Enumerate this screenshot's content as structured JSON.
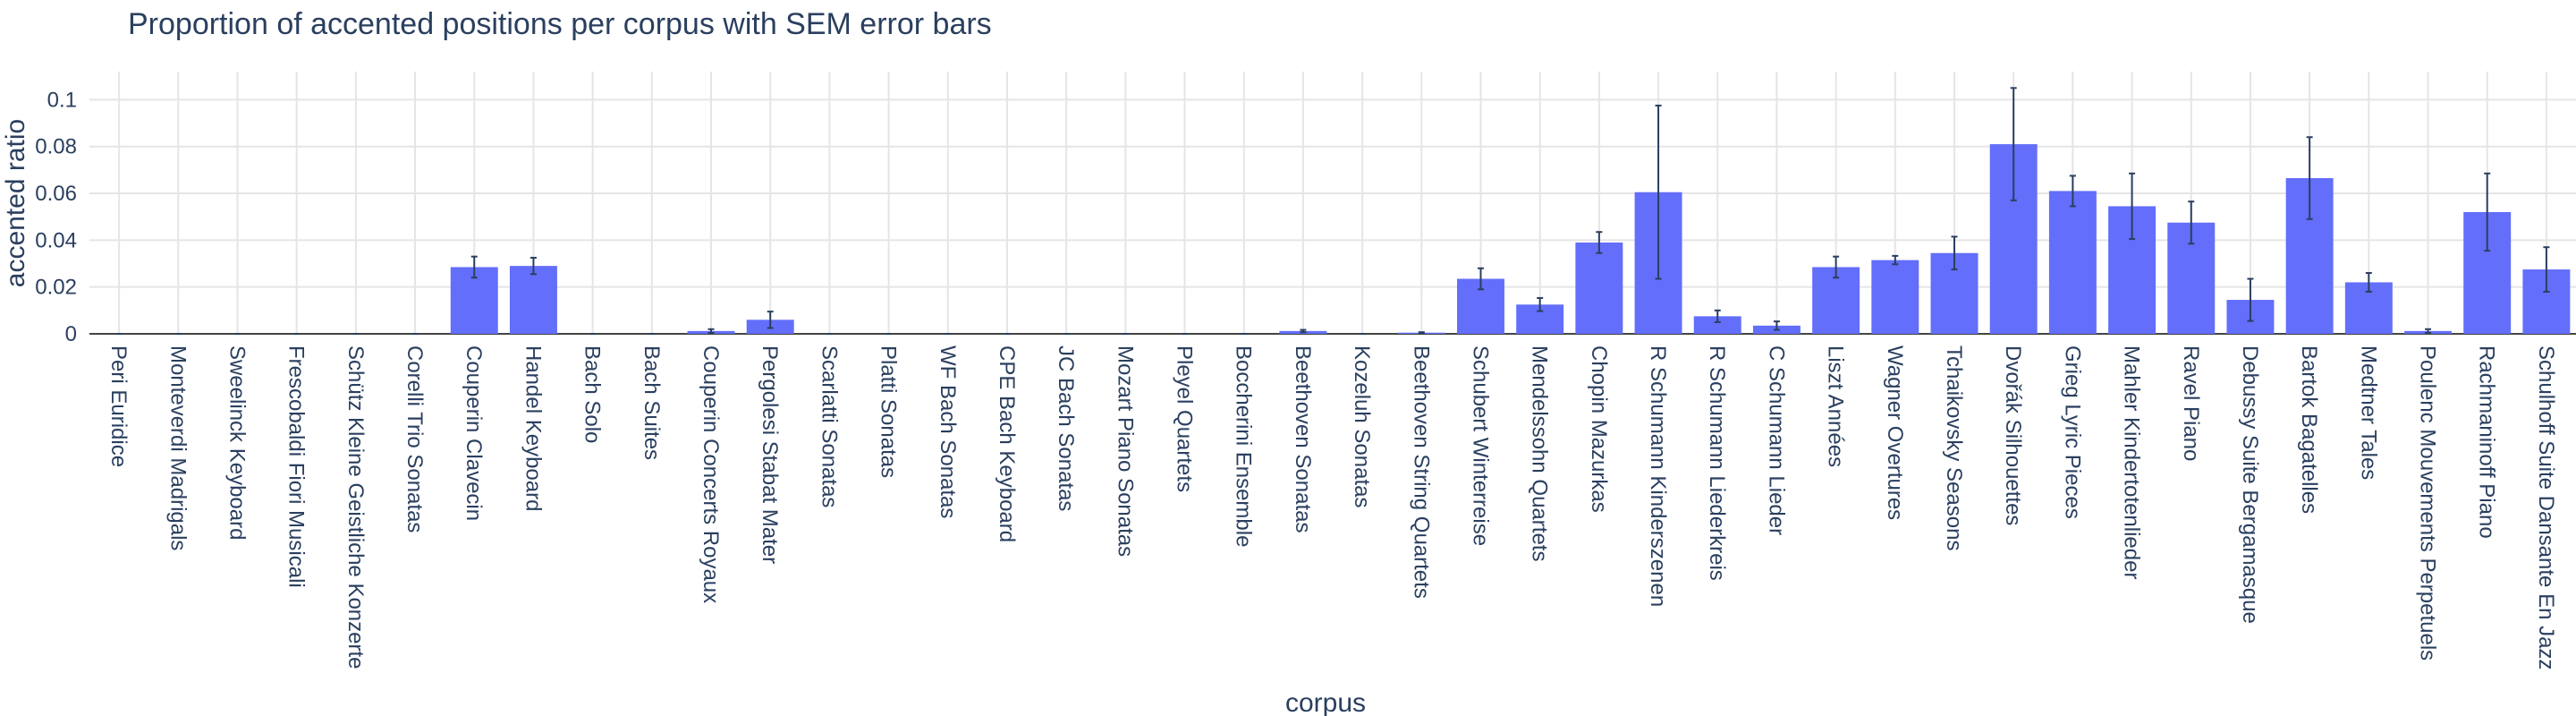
{
  "chart_data": {
    "type": "bar",
    "title": "Proportion of accented positions per corpus with SEM error bars",
    "xlabel": "corpus",
    "ylabel": "accented ratio",
    "ylim": [
      0,
      0.112
    ],
    "yticks": [
      0,
      0.02,
      0.04,
      0.06,
      0.08,
      0.1
    ],
    "ytick_labels": [
      "0",
      "0.02",
      "0.04",
      "0.06",
      "0.08",
      "0.1"
    ],
    "grid": true,
    "bar_color": "#636efa",
    "errorbar_color": "#2a3f5f",
    "categories": [
      "Peri Euridice",
      "Monteverdi Madrigals",
      "Sweelinck Keyboard",
      "Frescobaldi Fiori Musicali",
      "Schütz Kleine Geistliche Konzerte",
      "Corelli Trio Sonatas",
      "Couperin Clavecin",
      "Handel Keyboard",
      "Bach Solo",
      "Bach Suites",
      "Couperin Concerts Royaux",
      "Pergolesi Stabat Mater",
      "Scarlatti Sonatas",
      "Platti Sonatas",
      "WF Bach Sonatas",
      "CPE Bach Keyboard",
      "JC Bach Sonatas",
      "Mozart Piano Sonatas",
      "Pleyel Quartets",
      "Boccherini Ensemble",
      "Beethoven Sonatas",
      "Kozeluh Sonatas",
      "Beethoven String Quartets",
      "Schubert Winterreise",
      "Mendelssohn Quartets",
      "Chopin Mazurkas",
      "R Schumann Kinderszenen",
      "R Schumann Liederkreis",
      "C Schumann Lieder",
      "Liszt Années",
      "Wagner Overtures",
      "Tchaikovsky Seasons",
      "Dvořák Silhouettes",
      "Grieg Lyric Pieces",
      "Mahler Kindertotenlieder",
      "Ravel Piano",
      "Debussy Suite Bergamasque",
      "Bartok Bagatelles",
      "Medtner Tales",
      "Poulenc Mouvements Perpetuels",
      "Rachmaninoff Piano",
      "Schulhoff Suite Dansante En Jazz"
    ],
    "values": [
      0,
      0,
      0,
      0,
      0,
      0,
      0.0285,
      0.029,
      0,
      0,
      0.0012,
      0.006,
      0,
      0,
      0,
      0,
      0,
      0,
      0,
      0,
      0.0012,
      0,
      0.0005,
      0.0235,
      0.0125,
      0.039,
      0.0605,
      0.0075,
      0.0035,
      0.0285,
      0.0315,
      0.0345,
      0.081,
      0.061,
      0.0545,
      0.0475,
      0.0145,
      0.0665,
      0.022,
      0.0012,
      0.052,
      0.0275
    ],
    "errors": [
      0,
      0,
      0,
      0,
      0,
      0,
      0.0045,
      0.0035,
      0,
      0,
      0.0008,
      0.0035,
      0,
      0,
      0,
      0,
      0,
      0,
      0,
      0,
      0.0005,
      0,
      0.0002,
      0.0045,
      0.0028,
      0.0045,
      0.037,
      0.0025,
      0.0018,
      0.0045,
      0.0018,
      0.007,
      0.024,
      0.0065,
      0.014,
      0.009,
      0.009,
      0.0175,
      0.004,
      0.0008,
      0.0165,
      0.0095
    ]
  }
}
